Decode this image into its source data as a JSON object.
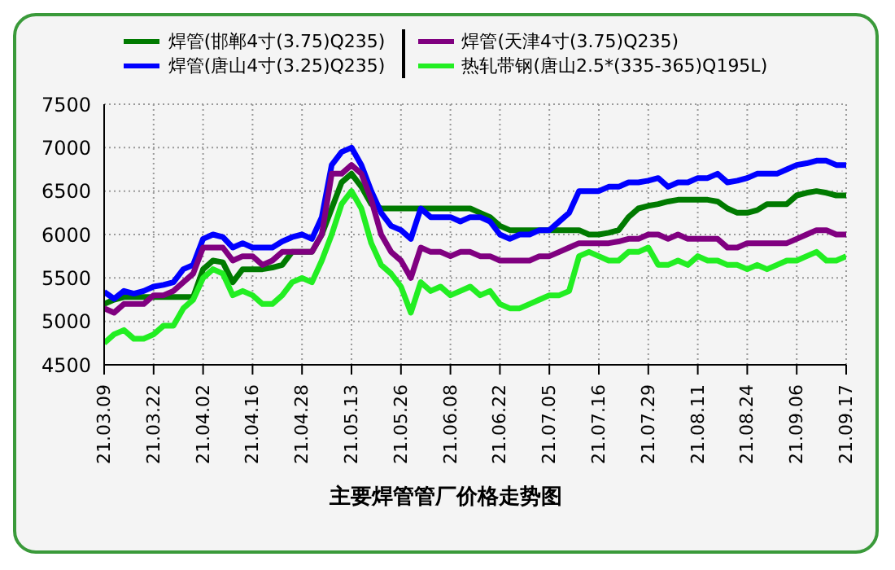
{
  "chart_data": {
    "type": "line",
    "title": "主要焊管管厂价格走势图",
    "categories": [
      "21.03.09",
      null,
      null,
      null,
      null,
      "21.03.22",
      null,
      null,
      null,
      null,
      "21.04.02",
      null,
      null,
      null,
      null,
      "21.04.16",
      null,
      null,
      null,
      null,
      "21.04.28",
      null,
      null,
      null,
      null,
      "21.05.13",
      null,
      null,
      null,
      null,
      "21.05.26",
      null,
      null,
      null,
      null,
      "21.06.08",
      null,
      null,
      null,
      null,
      "21.06.22",
      null,
      null,
      null,
      null,
      "21.07.05",
      null,
      null,
      null,
      null,
      "21.07.16",
      null,
      null,
      null,
      null,
      "21.07.29",
      null,
      null,
      null,
      null,
      "21.08.11",
      null,
      null,
      null,
      null,
      "21.08.24",
      null,
      null,
      null,
      null,
      "21.09.06",
      null,
      null,
      null,
      null,
      "21.09.17"
    ],
    "series": [
      {
        "name": "焊管(邯郸4寸(3.75)Q235)",
        "color": "#007a00",
        "values": [
          5200,
          5250,
          5280,
          5280,
          5280,
          5280,
          5280,
          5280,
          5280,
          5280,
          5600,
          5700,
          5680,
          5450,
          5600,
          5600,
          5600,
          5620,
          5650,
          5800,
          5800,
          5800,
          6000,
          6300,
          6600,
          6700,
          6550,
          6350,
          6300,
          6300,
          6300,
          6300,
          6300,
          6300,
          6300,
          6300,
          6300,
          6300,
          6250,
          6200,
          6100,
          6050,
          6050,
          6050,
          6050,
          6050,
          6050,
          6050,
          6050,
          6000,
          6000,
          6020,
          6050,
          6200,
          6300,
          6330,
          6350,
          6380,
          6400,
          6400,
          6400,
          6400,
          6380,
          6300,
          6250,
          6250,
          6280,
          6350,
          6350,
          6350,
          6450,
          6480,
          6500,
          6480,
          6450,
          6450
        ]
      },
      {
        "name": "焊管(唐山4寸(3.25)Q235)",
        "color": "#0000ff",
        "values": [
          5340,
          5260,
          5350,
          5320,
          5350,
          5400,
          5420,
          5450,
          5600,
          5650,
          5950,
          6000,
          5970,
          5850,
          5900,
          5850,
          5850,
          5850,
          5920,
          5970,
          6000,
          5950,
          6200,
          6800,
          6950,
          7000,
          6800,
          6500,
          6250,
          6100,
          6050,
          5950,
          6300,
          6200,
          6200,
          6200,
          6150,
          6200,
          6200,
          6150,
          6000,
          5950,
          6000,
          6000,
          6050,
          6050,
          6150,
          6250,
          6500,
          6500,
          6500,
          6550,
          6550,
          6600,
          6600,
          6620,
          6650,
          6550,
          6600,
          6600,
          6650,
          6650,
          6700,
          6600,
          6620,
          6650,
          6700,
          6700,
          6700,
          6750,
          6800,
          6820,
          6850,
          6850,
          6800,
          6800
        ]
      },
      {
        "name": "焊管(天津4寸(3.75)Q235)",
        "color": "#800080",
        "values": [
          5150,
          5100,
          5200,
          5200,
          5200,
          5300,
          5300,
          5350,
          5450,
          5550,
          5850,
          5850,
          5850,
          5700,
          5750,
          5750,
          5650,
          5700,
          5800,
          5800,
          5800,
          5800,
          6000,
          6700,
          6700,
          6800,
          6700,
          6400,
          6000,
          5800,
          5700,
          5500,
          5850,
          5800,
          5800,
          5750,
          5800,
          5800,
          5750,
          5750,
          5700,
          5700,
          5700,
          5700,
          5750,
          5750,
          5800,
          5850,
          5900,
          5900,
          5900,
          5900,
          5920,
          5950,
          5950,
          6000,
          6000,
          5950,
          6000,
          5950,
          5950,
          5950,
          5950,
          5850,
          5850,
          5900,
          5900,
          5900,
          5900,
          5900,
          5950,
          6000,
          6050,
          6050,
          6000,
          6000
        ]
      },
      {
        "name": "热轧带钢(唐山2.5*(335-365)Q195L)",
        "color": "#22ee22",
        "values": [
          4750,
          4850,
          4900,
          4800,
          4800,
          4850,
          4950,
          4950,
          5150,
          5250,
          5500,
          5600,
          5550,
          5300,
          5350,
          5300,
          5200,
          5200,
          5300,
          5450,
          5500,
          5450,
          5700,
          6000,
          6350,
          6500,
          6300,
          5900,
          5650,
          5550,
          5400,
          5100,
          5450,
          5350,
          5400,
          5300,
          5350,
          5400,
          5300,
          5350,
          5200,
          5150,
          5150,
          5200,
          5250,
          5300,
          5300,
          5350,
          5750,
          5800,
          5750,
          5700,
          5700,
          5800,
          5800,
          5850,
          5650,
          5650,
          5700,
          5650,
          5750,
          5700,
          5700,
          5650,
          5650,
          5600,
          5650,
          5600,
          5650,
          5700,
          5700,
          5750,
          5800,
          5700,
          5700,
          5750
        ]
      }
    ],
    "ylim": [
      4500,
      7500
    ],
    "yticks": [
      4500,
      5000,
      5500,
      6000,
      6500,
      7000,
      7500
    ],
    "grid": true,
    "legend": "top",
    "marker": "none",
    "line_style": "solid"
  }
}
